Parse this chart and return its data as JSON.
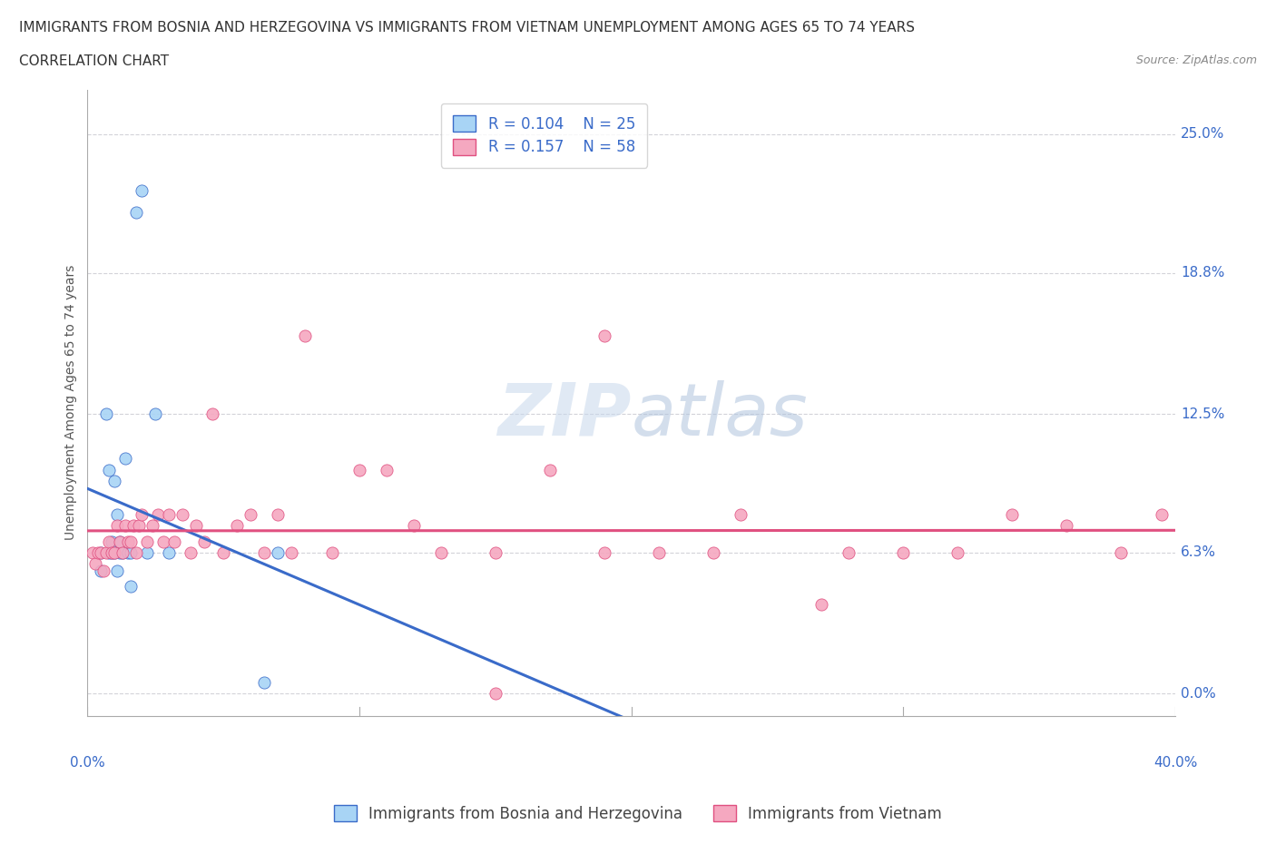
{
  "title_line1": "IMMIGRANTS FROM BOSNIA AND HERZEGOVINA VS IMMIGRANTS FROM VIETNAM UNEMPLOYMENT AMONG AGES 65 TO 74 YEARS",
  "title_line2": "CORRELATION CHART",
  "source_text": "Source: ZipAtlas.com",
  "ylabel": "Unemployment Among Ages 65 to 74 years",
  "xlim": [
    0.0,
    0.4
  ],
  "ylim": [
    -0.01,
    0.27
  ],
  "ytick_labels": [
    "0.0%",
    "6.3%",
    "12.5%",
    "18.8%",
    "25.0%"
  ],
  "ytick_values": [
    0.0,
    0.063,
    0.125,
    0.188,
    0.25
  ],
  "bosnia_R": 0.104,
  "bosnia_N": 25,
  "vietnam_R": 0.157,
  "vietnam_N": 58,
  "bosnia_color": "#A8D4F5",
  "vietnam_color": "#F5A8C0",
  "bosnia_line_color": "#3A6BC9",
  "vietnam_line_color": "#E05080",
  "bosnia_dash_color": "#7AAEE0",
  "grid_color": "#C8C8D0",
  "watermark_color": "#C8D8E8",
  "bosnia_x": [
    0.005,
    0.005,
    0.007,
    0.008,
    0.008,
    0.009,
    0.009,
    0.01,
    0.01,
    0.011,
    0.011,
    0.012,
    0.012,
    0.013,
    0.014,
    0.015,
    0.016,
    0.016,
    0.018,
    0.02,
    0.022,
    0.025,
    0.03,
    0.065,
    0.07
  ],
  "bosnia_y": [
    0.063,
    0.055,
    0.125,
    0.1,
    0.063,
    0.063,
    0.068,
    0.095,
    0.063,
    0.08,
    0.055,
    0.063,
    0.068,
    0.063,
    0.105,
    0.063,
    0.048,
    0.063,
    0.215,
    0.225,
    0.063,
    0.125,
    0.063,
    0.005,
    0.063
  ],
  "vietnam_x": [
    0.002,
    0.003,
    0.004,
    0.005,
    0.006,
    0.007,
    0.008,
    0.009,
    0.01,
    0.011,
    0.012,
    0.013,
    0.014,
    0.015,
    0.016,
    0.017,
    0.018,
    0.019,
    0.02,
    0.022,
    0.024,
    0.026,
    0.028,
    0.03,
    0.032,
    0.035,
    0.038,
    0.04,
    0.043,
    0.046,
    0.05,
    0.055,
    0.06,
    0.065,
    0.07,
    0.075,
    0.08,
    0.09,
    0.1,
    0.11,
    0.12,
    0.13,
    0.15,
    0.17,
    0.19,
    0.21,
    0.24,
    0.27,
    0.3,
    0.32,
    0.34,
    0.36,
    0.38,
    0.395,
    0.23,
    0.28,
    0.19,
    0.15
  ],
  "vietnam_y": [
    0.063,
    0.058,
    0.063,
    0.063,
    0.055,
    0.063,
    0.068,
    0.063,
    0.063,
    0.075,
    0.068,
    0.063,
    0.075,
    0.068,
    0.068,
    0.075,
    0.063,
    0.075,
    0.08,
    0.068,
    0.075,
    0.08,
    0.068,
    0.08,
    0.068,
    0.08,
    0.063,
    0.075,
    0.068,
    0.125,
    0.063,
    0.075,
    0.08,
    0.063,
    0.08,
    0.063,
    0.16,
    0.063,
    0.1,
    0.1,
    0.075,
    0.063,
    0.063,
    0.1,
    0.063,
    0.063,
    0.08,
    0.04,
    0.063,
    0.063,
    0.08,
    0.075,
    0.063,
    0.08,
    0.063,
    0.063,
    0.16,
    0.0
  ],
  "title_fontsize": 11,
  "subtitle_fontsize": 11,
  "axis_label_fontsize": 10,
  "tick_fontsize": 11,
  "legend_fontsize": 12
}
